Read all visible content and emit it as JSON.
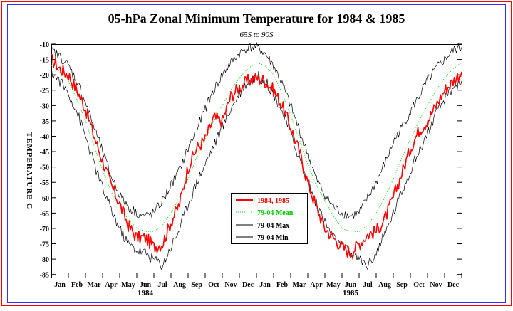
{
  "chart_data": {
    "type": "line",
    "title": "05-hPa Zonal Minimum Temperature for 1984 & 1985",
    "subtitle": "65S to 90S",
    "ylabel": "TEMPERATURE C",
    "ylim": [
      -86,
      -10
    ],
    "yticks": [
      -10,
      -15,
      -20,
      -25,
      -30,
      -35,
      -40,
      -45,
      -50,
      -55,
      -60,
      -65,
      -70,
      -75,
      -80,
      -85
    ],
    "xlim": [
      0,
      24
    ],
    "month_labels": [
      "Jan",
      "Feb",
      "Mar",
      "Apr",
      "May",
      "Jun",
      "Jul",
      "Aug",
      "Sep",
      "Oct",
      "Nov",
      "Dec",
      "Jan",
      "Feb",
      "Mar",
      "Apr",
      "May",
      "Jun",
      "Jul",
      "Aug",
      "Sep",
      "Oct",
      "Nov",
      "Dec"
    ],
    "year_labels": [
      {
        "label": "1984",
        "at_month": 5.5
      },
      {
        "label": "1985",
        "at_month": 17.5
      }
    ],
    "legend_position": "center",
    "series": [
      {
        "name": "1984, 1985",
        "color": "#ff0000",
        "style": "solid",
        "x": [
          0,
          0.5,
          1,
          1.5,
          2,
          2.5,
          3,
          3.5,
          4,
          4.5,
          5,
          5.5,
          6,
          6.5,
          7,
          7.5,
          8,
          8.5,
          9,
          9.5,
          10,
          10.5,
          11,
          11.5,
          12,
          12.5,
          13,
          13.5,
          14,
          14.5,
          15,
          15.5,
          16,
          16.5,
          17,
          17.5,
          18,
          18.5,
          19,
          19.5,
          20,
          20.5,
          21,
          21.5,
          22,
          22.5,
          23,
          23.5,
          24
        ],
        "y": [
          -15,
          -18,
          -20,
          -25,
          -31,
          -40,
          -48,
          -56,
          -62,
          -69,
          -73,
          -73,
          -76,
          -75,
          -68,
          -62,
          -50,
          -44,
          -41,
          -34,
          -35,
          -27,
          -24,
          -22,
          -21,
          -22,
          -25,
          -30,
          -37,
          -45,
          -55,
          -63,
          -70,
          -73,
          -76,
          -78,
          -75,
          -72,
          -71,
          -67,
          -60,
          -52,
          -44,
          -38,
          -35,
          -30,
          -25,
          -22,
          -19
        ]
      },
      {
        "name": "79-04 Mean",
        "color": "#00dd00",
        "style": "dotted",
        "x": [
          0,
          0.5,
          1,
          1.5,
          2,
          2.5,
          3,
          3.5,
          4,
          4.5,
          5,
          5.5,
          6,
          6.5,
          7,
          7.5,
          8,
          8.5,
          9,
          9.5,
          10,
          10.5,
          11,
          11.5,
          12,
          12.5,
          13,
          13.5,
          14,
          14.5,
          15,
          15.5,
          16,
          16.5,
          17,
          17.5,
          18,
          18.5,
          19,
          19.5,
          20,
          20.5,
          21,
          21.5,
          22,
          22.5,
          23,
          23.5,
          24
        ],
        "y": [
          -17,
          -19,
          -22,
          -28,
          -35,
          -43,
          -51,
          -58,
          -63,
          -67,
          -70,
          -71,
          -71,
          -69,
          -65,
          -60,
          -54,
          -47,
          -41,
          -35,
          -30,
          -25,
          -21,
          -18,
          -16,
          -17,
          -20,
          -26,
          -33,
          -41,
          -49,
          -56,
          -61,
          -66,
          -70,
          -71,
          -71,
          -69,
          -65,
          -60,
          -54,
          -47,
          -41,
          -35,
          -30,
          -25,
          -21,
          -18,
          -16
        ]
      },
      {
        "name": "79-04 Max",
        "color": "#000000",
        "style": "solid",
        "x": [
          0,
          0.5,
          1,
          1.5,
          2,
          2.5,
          3,
          3.5,
          4,
          4.5,
          5,
          5.5,
          6,
          6.5,
          7,
          7.5,
          8,
          8.5,
          9,
          9.5,
          10,
          10.5,
          11,
          11.5,
          12,
          12.5,
          13,
          13.5,
          14,
          14.5,
          15,
          15.5,
          16,
          16.5,
          17,
          17.5,
          18,
          18.5,
          19,
          19.5,
          20,
          20.5,
          21,
          21.5,
          22,
          22.5,
          23,
          23.5,
          24
        ],
        "y": [
          -12,
          -14,
          -17,
          -22,
          -29,
          -37,
          -45,
          -53,
          -59,
          -63,
          -65,
          -66,
          -65,
          -61,
          -56,
          -51,
          -44,
          -38,
          -31,
          -25,
          -20,
          -16,
          -13,
          -11,
          -11,
          -13,
          -17,
          -23,
          -30,
          -38,
          -46,
          -54,
          -59,
          -63,
          -65,
          -66,
          -65,
          -60,
          -55,
          -49,
          -42,
          -37,
          -32,
          -27,
          -22,
          -18,
          -15,
          -12,
          -11
        ]
      },
      {
        "name": "79-04 Min",
        "color": "#000000",
        "style": "solid",
        "x": [
          0,
          0.5,
          1,
          1.5,
          2,
          2.5,
          3,
          3.5,
          4,
          4.5,
          5,
          5.5,
          6,
          6.5,
          7,
          7.5,
          8,
          8.5,
          9,
          9.5,
          10,
          10.5,
          11,
          11.5,
          12,
          12.5,
          13,
          13.5,
          14,
          14.5,
          15,
          15.5,
          16,
          16.5,
          17,
          17.5,
          18,
          18.5,
          19,
          19.5,
          20,
          20.5,
          21,
          21.5,
          22,
          22.5,
          23,
          23.5,
          24
        ],
        "y": [
          -19,
          -22,
          -26,
          -32,
          -40,
          -49,
          -57,
          -64,
          -70,
          -75,
          -77,
          -78,
          -80,
          -82,
          -76,
          -70,
          -62,
          -55,
          -49,
          -43,
          -37,
          -31,
          -26,
          -22,
          -20,
          -22,
          -26,
          -32,
          -39,
          -47,
          -55,
          -62,
          -68,
          -73,
          -76,
          -78,
          -80,
          -82,
          -78,
          -72,
          -65,
          -58,
          -51,
          -45,
          -39,
          -33,
          -28,
          -24,
          -22
        ]
      }
    ]
  }
}
